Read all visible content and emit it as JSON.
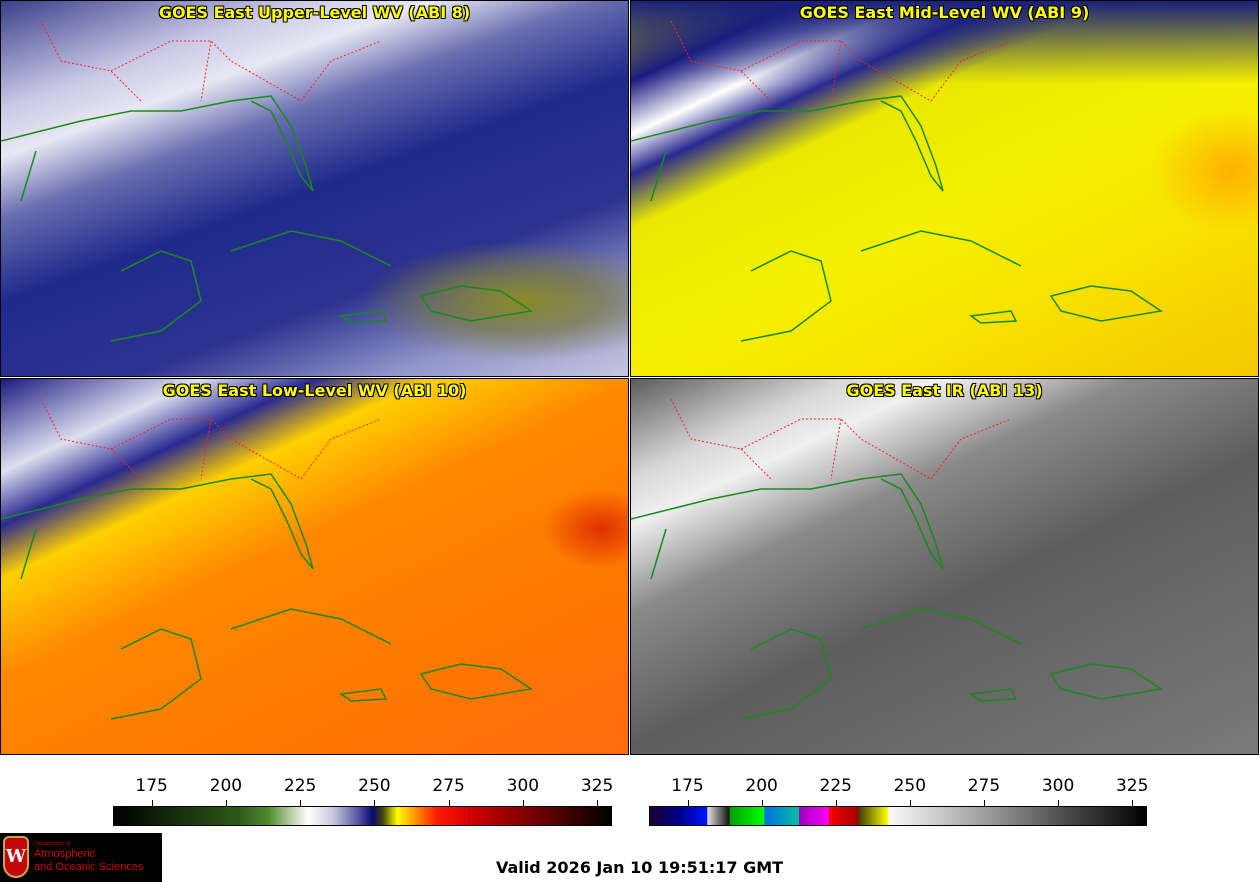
{
  "panels": [
    {
      "title": "GOES East Upper-Level WV (ABI 8)"
    },
    {
      "title": "GOES East Mid-Level WV (ABI 9)"
    },
    {
      "title": "GOES East Low-Level WV (ABI 10)"
    },
    {
      "title": "GOES East IR (ABI 13)"
    }
  ],
  "colorbars": [
    {
      "name": "water-vapor",
      "range": [
        162,
        330
      ],
      "ticks": [
        "175",
        "200",
        "225",
        "250",
        "275",
        "300",
        "325"
      ]
    },
    {
      "name": "infrared",
      "range": [
        162,
        330
      ],
      "ticks": [
        "175",
        "200",
        "225",
        "250",
        "275",
        "300",
        "325"
      ]
    }
  ],
  "logo": {
    "dept": "Department of",
    "line1": "Atmospheric",
    "line2": "and Oceanic Sciences",
    "letter": "W"
  },
  "valid": "Valid 2026 Jan 10 19:51:17 GMT",
  "colors": {
    "title": "#ffff00",
    "coastline": "#1a8a1a",
    "state_borders": "#ff2020"
  }
}
